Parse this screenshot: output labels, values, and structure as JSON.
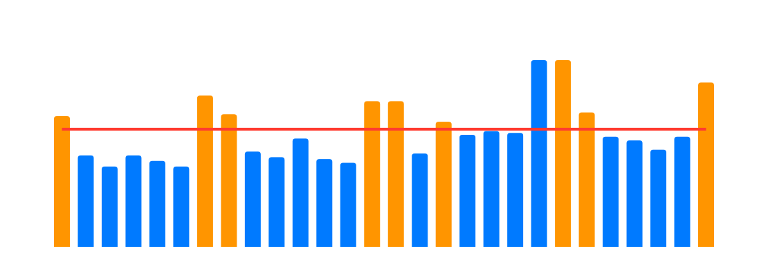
{
  "chart_data": {
    "type": "bar",
    "title": "",
    "xlabel": "",
    "ylabel": "",
    "ylim": [
      0,
      100
    ],
    "grid": false,
    "legend": "none",
    "values": [
      70,
      49,
      43,
      49,
      46,
      43,
      81,
      71,
      51,
      48,
      58,
      47,
      45,
      78,
      78,
      50,
      67,
      60,
      62,
      61,
      100,
      100,
      72,
      59,
      57,
      52,
      59,
      88
    ],
    "highlight": [
      true,
      false,
      false,
      false,
      false,
      false,
      true,
      true,
      false,
      false,
      false,
      false,
      false,
      true,
      true,
      false,
      true,
      false,
      false,
      false,
      false,
      true,
      true,
      false,
      false,
      false,
      false,
      true
    ],
    "reference_line": 63
  },
  "colors": {
    "bar_default": "#007AFF",
    "bar_highlight": "#FF9500",
    "reference_line": "#FF3B30",
    "background": "#FFFFFF"
  }
}
